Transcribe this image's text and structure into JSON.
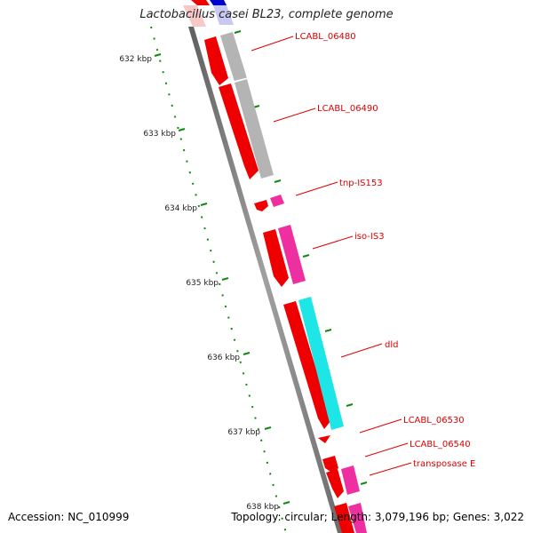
{
  "title": "Lactobacillus casei BL23, complete genome",
  "footer": {
    "accession": "Accession: NC_010999",
    "summary": "Topology: circular; Length: 3,079,196 bp; Genes: 3,022"
  },
  "scale_ticks": [
    "632 kbp",
    "633 kbp",
    "634 kbp",
    "635 kbp",
    "636 kbp",
    "637 kbp",
    "638 kbp"
  ],
  "gene_labels": [
    "LCABL_06480",
    "LCABL_06490",
    "tnp-IS153",
    "iso-IS3",
    "dld",
    "LCABL_06530",
    "LCABL_06540",
    "transposase E"
  ],
  "colors": {
    "cds": "#ee0000",
    "gene_gray": "#b4b4b4",
    "transposase": "#ee2f9f",
    "dld": "#1ee6e6",
    "blue": "#0000cc",
    "tick": "#118811",
    "label": "#dd0000",
    "backbone": "#888888"
  }
}
